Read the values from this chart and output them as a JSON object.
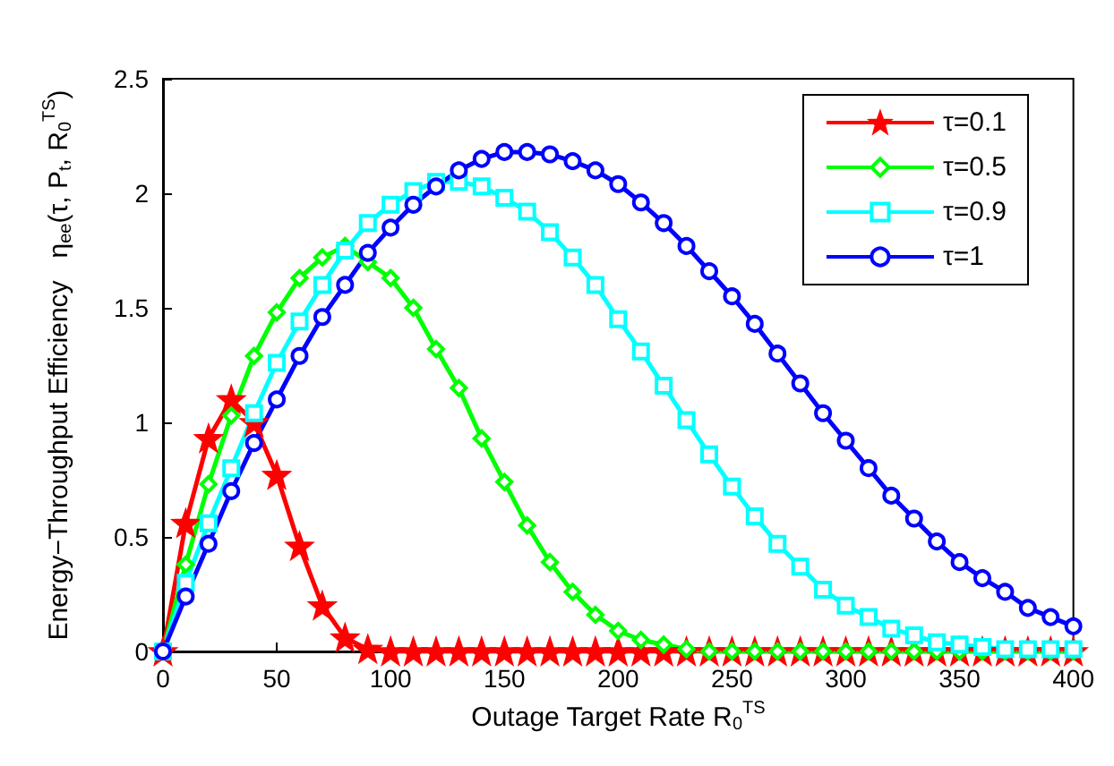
{
  "chart_data": {
    "type": "line",
    "xlabel": "Outage Target Rate R$_{0}$$^{TS}$",
    "ylabel": "Energy−Throughput Efficiency   η$_{ee}$(τ, P$_{t}$, R$_{0}$$^{TS}$)",
    "x": [
      0,
      10,
      20,
      30,
      40,
      50,
      60,
      70,
      80,
      90,
      100,
      110,
      120,
      130,
      140,
      150,
      160,
      170,
      180,
      190,
      200,
      210,
      220,
      230,
      240,
      250,
      260,
      270,
      280,
      290,
      300,
      310,
      320,
      330,
      340,
      350,
      360,
      370,
      380,
      390,
      400
    ],
    "series": [
      {
        "name": "τ=0.1",
        "color": "#ff0000",
        "marker": "star",
        "values": [
          0,
          0.56,
          0.93,
          1.1,
          1.0,
          0.77,
          0.46,
          0.2,
          0.06,
          0.01,
          0,
          0,
          0,
          0,
          0,
          0,
          0,
          0,
          0,
          0,
          0,
          0,
          0,
          0,
          0,
          0,
          0,
          0,
          0,
          0,
          0,
          0,
          0,
          0,
          0,
          0,
          0,
          0,
          0,
          0,
          0
        ]
      },
      {
        "name": "τ=0.5",
        "color": "#00ff00",
        "marker": "diamond",
        "values": [
          0,
          0.38,
          0.73,
          1.03,
          1.29,
          1.48,
          1.63,
          1.72,
          1.77,
          1.7,
          1.63,
          1.5,
          1.32,
          1.15,
          0.93,
          0.74,
          0.55,
          0.39,
          0.26,
          0.16,
          0.09,
          0.05,
          0.03,
          0.01,
          0,
          0,
          0,
          0,
          0,
          0,
          0,
          0,
          0,
          0,
          0,
          0,
          0,
          0,
          0,
          0,
          0
        ]
      },
      {
        "name": "τ=0.9",
        "color": "#00ffff",
        "marker": "square",
        "values": [
          0,
          0.3,
          0.56,
          0.8,
          1.04,
          1.26,
          1.44,
          1.6,
          1.75,
          1.87,
          1.95,
          2.01,
          2.05,
          2.05,
          2.03,
          1.98,
          1.92,
          1.83,
          1.72,
          1.6,
          1.45,
          1.31,
          1.16,
          1.01,
          0.86,
          0.72,
          0.59,
          0.47,
          0.37,
          0.27,
          0.2,
          0.15,
          0.1,
          0.07,
          0.04,
          0.03,
          0.02,
          0.01,
          0.01,
          0.01,
          0.01
        ]
      },
      {
        "name": "τ=1",
        "color": "#0000ff",
        "marker": "circle",
        "values": [
          0,
          0.24,
          0.47,
          0.7,
          0.91,
          1.1,
          1.29,
          1.46,
          1.6,
          1.74,
          1.85,
          1.95,
          2.03,
          2.1,
          2.15,
          2.18,
          2.18,
          2.17,
          2.14,
          2.1,
          2.04,
          1.96,
          1.87,
          1.77,
          1.66,
          1.55,
          1.43,
          1.3,
          1.17,
          1.04,
          0.92,
          0.8,
          0.68,
          0.58,
          0.48,
          0.39,
          0.32,
          0.26,
          0.19,
          0.15,
          0.11
        ]
      }
    ],
    "xlim": [
      0,
      400
    ],
    "xticks": [
      0,
      50,
      100,
      150,
      200,
      250,
      300,
      350,
      400
    ],
    "ylim": [
      0,
      2.5
    ],
    "yticks": [
      0,
      0.5,
      1,
      1.5,
      2,
      2.5
    ],
    "legend": "top right",
    "line_style": "solid",
    "grid": false
  }
}
